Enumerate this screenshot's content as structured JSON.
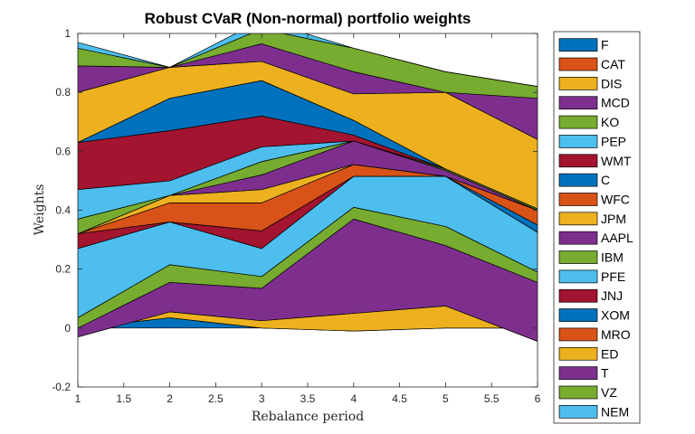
{
  "chart_data": {
    "type": "area",
    "title": "Robust CVaR (Non-normal) portfolio weights",
    "xlabel": "Rebalance period",
    "ylabel": "Weights",
    "x": [
      1,
      2,
      3,
      4,
      5,
      6
    ],
    "xlim": [
      1,
      6
    ],
    "ylim": [
      -0.2,
      1
    ],
    "xticks": [
      1,
      1.5,
      2,
      2.5,
      3,
      3.5,
      4,
      4.5,
      5,
      5.5,
      6
    ],
    "yticks": [
      -0.2,
      0,
      0.2,
      0.4,
      0.6,
      0.8,
      1
    ],
    "grid": false,
    "legend_position": "outside-right",
    "series": [
      {
        "name": "F",
        "color": "#0072BD",
        "values": [
          0.0,
          0.035,
          0.0,
          0.0,
          0.0,
          0.0
        ]
      },
      {
        "name": "CAT",
        "color": "#D95319",
        "values": [
          0.0,
          0.0,
          0.0,
          -0.01,
          0.0,
          0.0
        ]
      },
      {
        "name": "DIS",
        "color": "#EDB120",
        "values": [
          -0.03,
          0.02,
          0.025,
          0.06,
          0.075,
          -0.045
        ]
      },
      {
        "name": "MCD",
        "color": "#7E2F8E",
        "values": [
          0.03,
          0.1,
          0.11,
          0.32,
          0.205,
          0.2
        ]
      },
      {
        "name": "KO",
        "color": "#77AC30",
        "values": [
          0.035,
          0.06,
          0.04,
          0.04,
          0.065,
          0.035
        ]
      },
      {
        "name": "PEP",
        "color": "#4DBEEE",
        "values": [
          0.235,
          0.145,
          0.095,
          0.105,
          0.17,
          0.135
        ]
      },
      {
        "name": "WMT",
        "color": "#A2142F",
        "values": [
          0.05,
          0.0,
          0.06,
          0.0,
          0.0,
          0.0
        ]
      },
      {
        "name": "C",
        "color": "#0072BD",
        "values": [
          0.0,
          0.0,
          0.0,
          0.0,
          0.0,
          0.025
        ]
      },
      {
        "name": "WFC",
        "color": "#D95319",
        "values": [
          0.0,
          0.065,
          0.095,
          0.04,
          0.0,
          0.05
        ]
      },
      {
        "name": "JPM",
        "color": "#EDB120",
        "values": [
          0.0,
          0.025,
          0.045,
          0.0,
          0.0,
          0.0
        ]
      },
      {
        "name": "AAPL",
        "color": "#7E2F8E",
        "values": [
          0.0,
          0.0,
          0.05,
          0.08,
          0.02,
          0.0
        ]
      },
      {
        "name": "IBM",
        "color": "#77AC30",
        "values": [
          0.05,
          0.0,
          0.045,
          0.0,
          0.005,
          0.005
        ]
      },
      {
        "name": "PFE",
        "color": "#4DBEEE",
        "values": [
          0.1,
          0.05,
          0.05,
          0.0,
          0.0,
          0.0
        ]
      },
      {
        "name": "JNJ",
        "color": "#A2142F",
        "values": [
          0.16,
          0.17,
          0.105,
          0.02,
          0.0,
          0.0
        ]
      },
      {
        "name": "XOM",
        "color": "#0072BD",
        "values": [
          0.0,
          0.11,
          0.12,
          0.05,
          0.0,
          0.0
        ]
      },
      {
        "name": "MRO",
        "color": "#D95319",
        "values": [
          0.0,
          0.0,
          0.0,
          0.0,
          0.0,
          0.0
        ]
      },
      {
        "name": "ED",
        "color": "#EDB120",
        "values": [
          0.17,
          0.105,
          0.065,
          0.09,
          0.26,
          0.235
        ]
      },
      {
        "name": "T",
        "color": "#7E2F8E",
        "values": [
          0.09,
          0.0,
          0.06,
          0.075,
          0.0,
          0.14
        ]
      },
      {
        "name": "VZ",
        "color": "#77AC30",
        "values": [
          0.06,
          0.0,
          0.05,
          0.08,
          0.07,
          0.04
        ]
      },
      {
        "name": "NEM",
        "color": "#4DBEEE",
        "values": [
          0.02,
          0.0,
          0.03,
          0.0,
          0.0,
          0.0
        ]
      }
    ]
  }
}
